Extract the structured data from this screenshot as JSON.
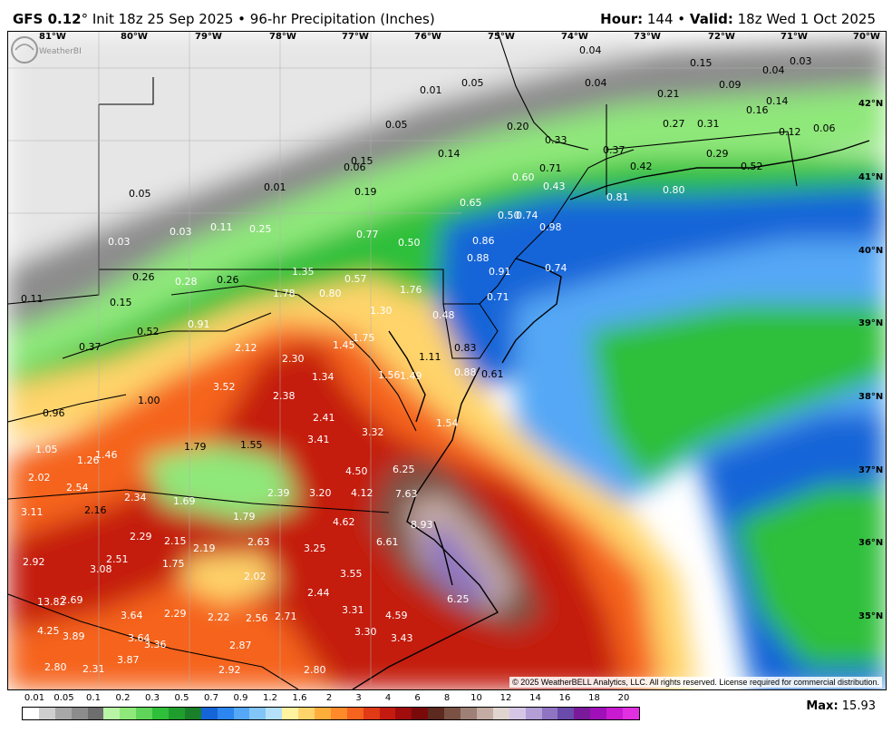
{
  "header": {
    "model": "GFS 0.12",
    "degree_symbol": "°",
    "init": " Init 18z 25 Sep 2025",
    "bullet": " • ",
    "product": "96-hr Precipitation (Inches)",
    "hour_label": "Hour:",
    "hour_value": " 144 ",
    "valid_label": "Valid:",
    "valid_value": " 18z Wed 1 Oct 2025"
  },
  "longitudes": [
    "81°W",
    "80°W",
    "79°W",
    "78°W",
    "77°W",
    "76°W",
    "75°W",
    "74°W",
    "73°W",
    "72°W",
    "71°W",
    "70°W"
  ],
  "latitudes": [
    "42°N",
    "41°N",
    "40°N",
    "39°N",
    "38°N",
    "37°N",
    "36°N",
    "35°N"
  ],
  "values": [
    "0.04",
    "0.15",
    "0.04",
    "0.03",
    "0.01",
    "0.05",
    "0.04",
    "0.21",
    "0.09",
    "0.14",
    "0.05",
    "0.20",
    "0.27",
    "0.31",
    "0.16",
    "0.33",
    "0.37",
    "0.29",
    "0.12",
    "0.06",
    "0.71",
    "0.42",
    "0.52",
    "0.06",
    "0.15",
    "0.14",
    "0.60",
    "0.43",
    "0.81",
    "0.80",
    "0.05",
    "0.01",
    "0.19",
    "0.65",
    "0.50",
    "0.74",
    "0.98",
    "0.03",
    "0.11",
    "0.25",
    "0.77",
    "0.50",
    "0.86",
    "0.03",
    "0.88",
    "0.91",
    "0.74",
    "0.26",
    "0.28",
    "0.26",
    "1.35",
    "0.57",
    "0.11",
    "0.15",
    "1.78",
    "0.80",
    "1.76",
    "0.71",
    "1.30",
    "0.48",
    "0.52",
    "0.91",
    "1.75",
    "0.37",
    "2.12",
    "1.45",
    "0.83",
    "2.30",
    "1.11",
    "1.34",
    "1.56",
    "1.49",
    "0.88",
    "0.61",
    "3.52",
    "2.38",
    "1.00",
    "0.96",
    "2.41",
    "1.54",
    "3.41",
    "3.32",
    "1.79",
    "1.55",
    "1.05",
    "1.26",
    "1.46",
    "6.25",
    "4.50",
    "2.02",
    "2.54",
    "2.34",
    "1.69",
    "2.39",
    "3.20",
    "4.12",
    "7.63",
    "3.11",
    "2.16",
    "1.79",
    "4.62",
    "8.93",
    "2.29",
    "2.15",
    "2.19",
    "2.63",
    "3.25",
    "6.61",
    "2.92",
    "2.51",
    "3.08",
    "1.75",
    "2.02",
    "3.55",
    "2.44",
    "13.82",
    "2.69",
    "6.25",
    "3.64",
    "2.29",
    "2.22",
    "2.56",
    "2.71",
    "3.31",
    "4.59",
    "4.25",
    "3.89",
    "3.64",
    "3.36",
    "3.30",
    "3.43",
    "2.87",
    "2.80",
    "2.31",
    "3.87",
    "2.92",
    "2.80"
  ],
  "copyright": "© 2025 WeatherBELL Analytics, LLC. All rights reserved. License required for commercial distribution.",
  "colorbar": {
    "ticks": [
      "0.01",
      "0.05",
      "0.1",
      "0.2",
      "0.3",
      "0.5",
      "0.7",
      "0.9",
      "1.2",
      "1.6",
      "2",
      "3",
      "4",
      "6",
      "8",
      "10",
      "12",
      "14",
      "16",
      "18",
      "20"
    ],
    "colors": [
      "#ffffff",
      "#cfcfcf",
      "#a8a8a8",
      "#8c8c8c",
      "#6e6e6e",
      "#b8f5a6",
      "#8fe87a",
      "#5fd65a",
      "#2fbf3a",
      "#1f9e2e",
      "#1a7f2a",
      "#1565d8",
      "#2d86f0",
      "#54a8f5",
      "#82c6f7",
      "#b4e0fa",
      "#fff3a0",
      "#ffd46a",
      "#ffae3c",
      "#ff8a2a",
      "#f5631e",
      "#e03a16",
      "#c41a10",
      "#a10c0c",
      "#7a0a0a",
      "#5c2a1e",
      "#7a5244",
      "#9e8076",
      "#c4aca4",
      "#e0d4d0",
      "#d6c6e6",
      "#b39ed6",
      "#8f74c2",
      "#6a4aaa",
      "#7a1a9a",
      "#a010b8",
      "#c81ad0",
      "#e030e0"
    ]
  },
  "max_label": "Max:",
  "max_value": " 15.93",
  "logo_text": "WeatherBELL"
}
